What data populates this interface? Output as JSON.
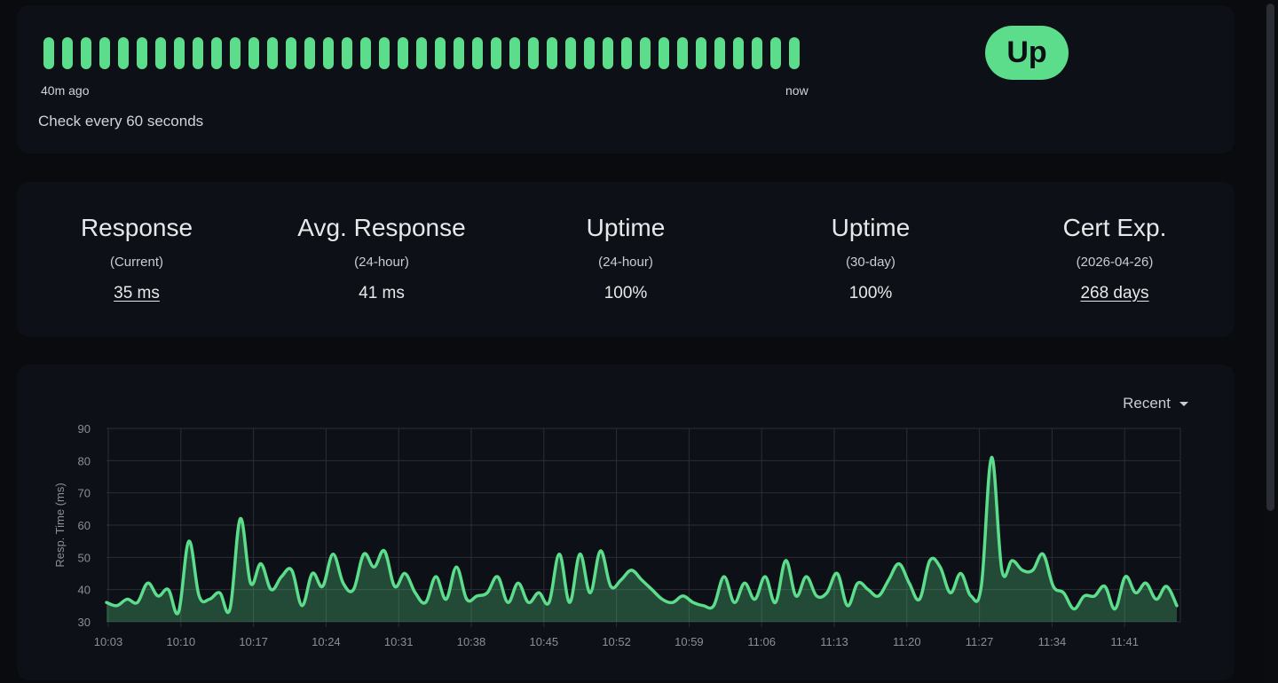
{
  "heartbeat": {
    "beat_count": 41,
    "beat_color": "#5cdd8b",
    "start_label": "40m ago",
    "end_label": "now",
    "interval_text": "Check every 60 seconds",
    "status": "Up"
  },
  "stats": [
    {
      "title": "Response",
      "sub": "(Current)",
      "value": "35 ms",
      "link": true
    },
    {
      "title": "Avg. Response",
      "sub": "(24-hour)",
      "value": "41 ms",
      "link": false
    },
    {
      "title": "Uptime",
      "sub": "(24-hour)",
      "value": "100%",
      "link": false
    },
    {
      "title": "Uptime",
      "sub": "(30-day)",
      "value": "100%",
      "link": false
    },
    {
      "title": "Cert Exp.",
      "sub": "(2026-04-26)",
      "value": "268 days",
      "link": true
    }
  ],
  "chart_controls": {
    "period_label": "Recent"
  },
  "colors": {
    "accent": "#5cdd8b",
    "card": "#0d1117",
    "background": "#090b0e"
  },
  "chart_data": {
    "type": "area",
    "title": "",
    "xlabel": "",
    "ylabel": "Resp. Time (ms)",
    "ylim": [
      30,
      90
    ],
    "yticks": [
      30,
      40,
      50,
      60,
      70,
      80,
      90
    ],
    "x_tick_labels": [
      "10:03",
      "10:10",
      "10:17",
      "10:24",
      "10:31",
      "10:38",
      "10:45",
      "10:52",
      "10:59",
      "11:06",
      "11:13",
      "11:20",
      "11:27",
      "11:34",
      "11:41"
    ],
    "x_start": "10:03",
    "x_end": "11:45",
    "interval_minutes": 0.68,
    "values": [
      36,
      35,
      37,
      36,
      42,
      38,
      40,
      33,
      55,
      38,
      37,
      39,
      34,
      62,
      42,
      48,
      40,
      44,
      46,
      35,
      45,
      41,
      51,
      42,
      40,
      51,
      47,
      52,
      41,
      45,
      39,
      36,
      44,
      37,
      47,
      37,
      38,
      39,
      44,
      36,
      42,
      36,
      39,
      36,
      51,
      36,
      51,
      39,
      52,
      41,
      43,
      46,
      43,
      40,
      37,
      36,
      38,
      36,
      35,
      35,
      44,
      36,
      42,
      37,
      44,
      36,
      49,
      38,
      44,
      38,
      39,
      45,
      35,
      42,
      40,
      38,
      43,
      48,
      42,
      37,
      49,
      47,
      39,
      45,
      38,
      41,
      81,
      46,
      49,
      46,
      46,
      51,
      41,
      39,
      34,
      38,
      38,
      41,
      34,
      44,
      39,
      42,
      37,
      41,
      35
    ],
    "grid": true
  }
}
